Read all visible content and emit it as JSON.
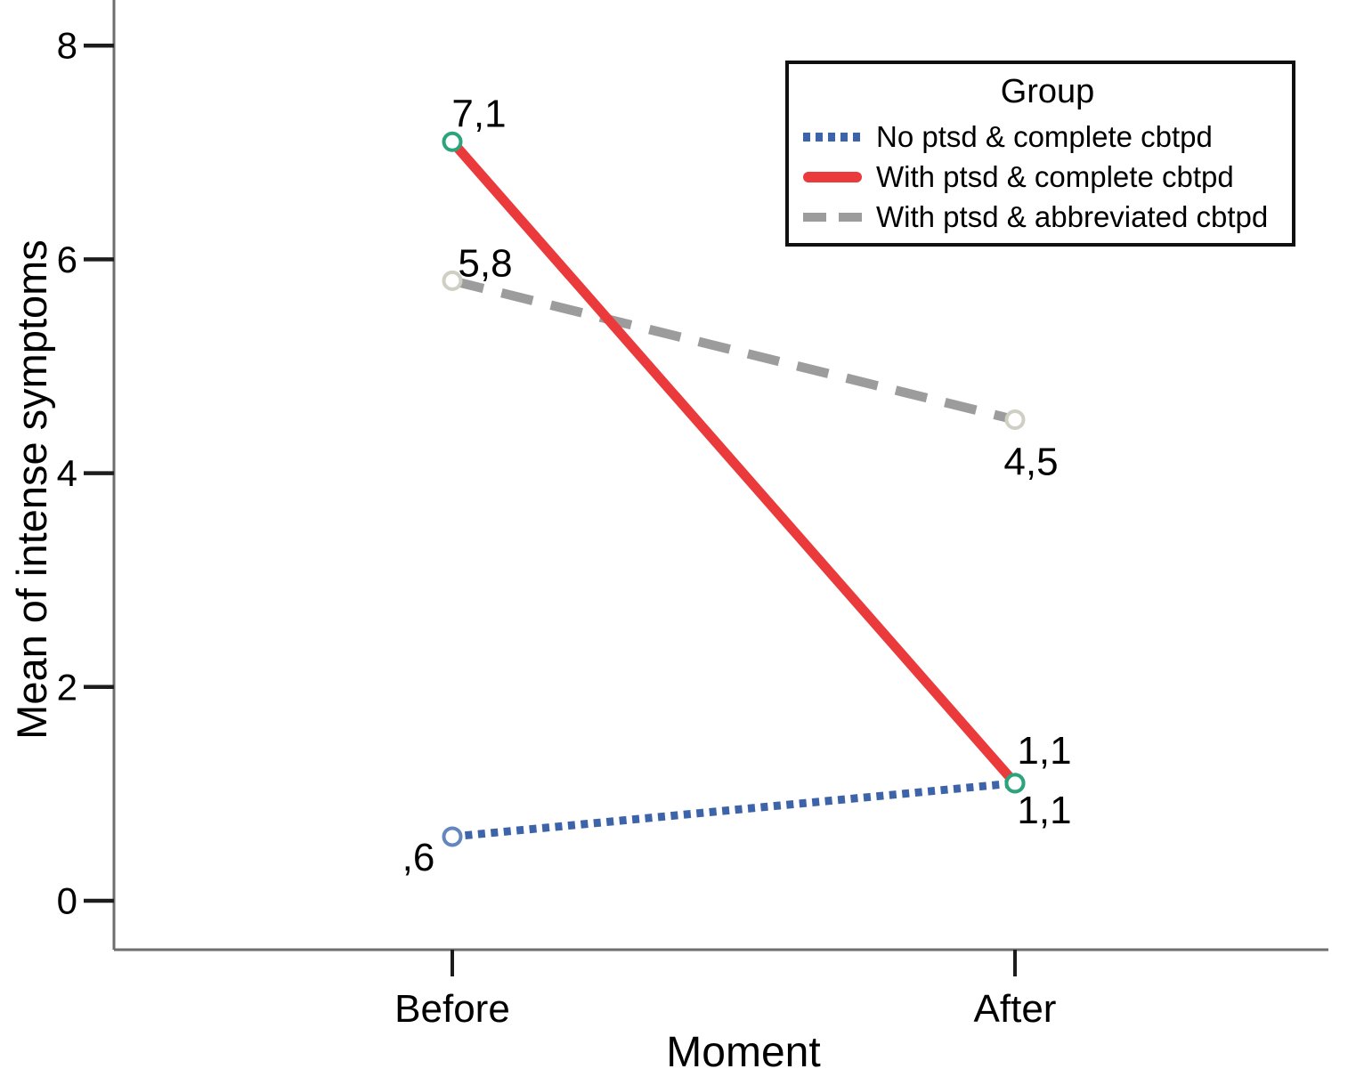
{
  "figure": {
    "background": "#ffffff",
    "axis_line_color": "#6e6e6e",
    "tick_color": "#1c1c1c",
    "text_color": "#000000"
  },
  "chart_data": {
    "type": "line",
    "title": "",
    "xlabel": "Moment",
    "ylabel": "Mean of intense symptoms",
    "categories": [
      "Before",
      "After"
    ],
    "y_ticks": [
      "0",
      "2",
      "4",
      "6",
      "8"
    ],
    "y_tick_values": [
      0,
      2,
      4,
      6,
      8
    ],
    "ylim": [
      -0.46,
      8.42
    ],
    "grid": false,
    "legend": {
      "title": "Group",
      "position": "top-right",
      "border": true
    },
    "series": [
      {
        "name": "No ptsd & complete cbtpd",
        "values": [
          0.6,
          1.1
        ],
        "point_labels": [
          ",6",
          "1,1"
        ],
        "line_style": "dotted",
        "color": "#3d63a8",
        "marker_color": "#6286c0"
      },
      {
        "name": "With ptsd & complete cbtpd",
        "values": [
          7.1,
          1.1
        ],
        "point_labels": [
          "7,1",
          "1,1"
        ],
        "line_style": "solid",
        "color": "#ea3a3c",
        "marker_color": "#2ba47c"
      },
      {
        "name": "With ptsd & abbreviated cbtpd",
        "values": [
          5.8,
          4.5
        ],
        "point_labels": [
          "5,8",
          "4,5"
        ],
        "line_style": "dashed",
        "color": "#9c9c9c",
        "marker_color": "#cfcfc3"
      }
    ]
  }
}
